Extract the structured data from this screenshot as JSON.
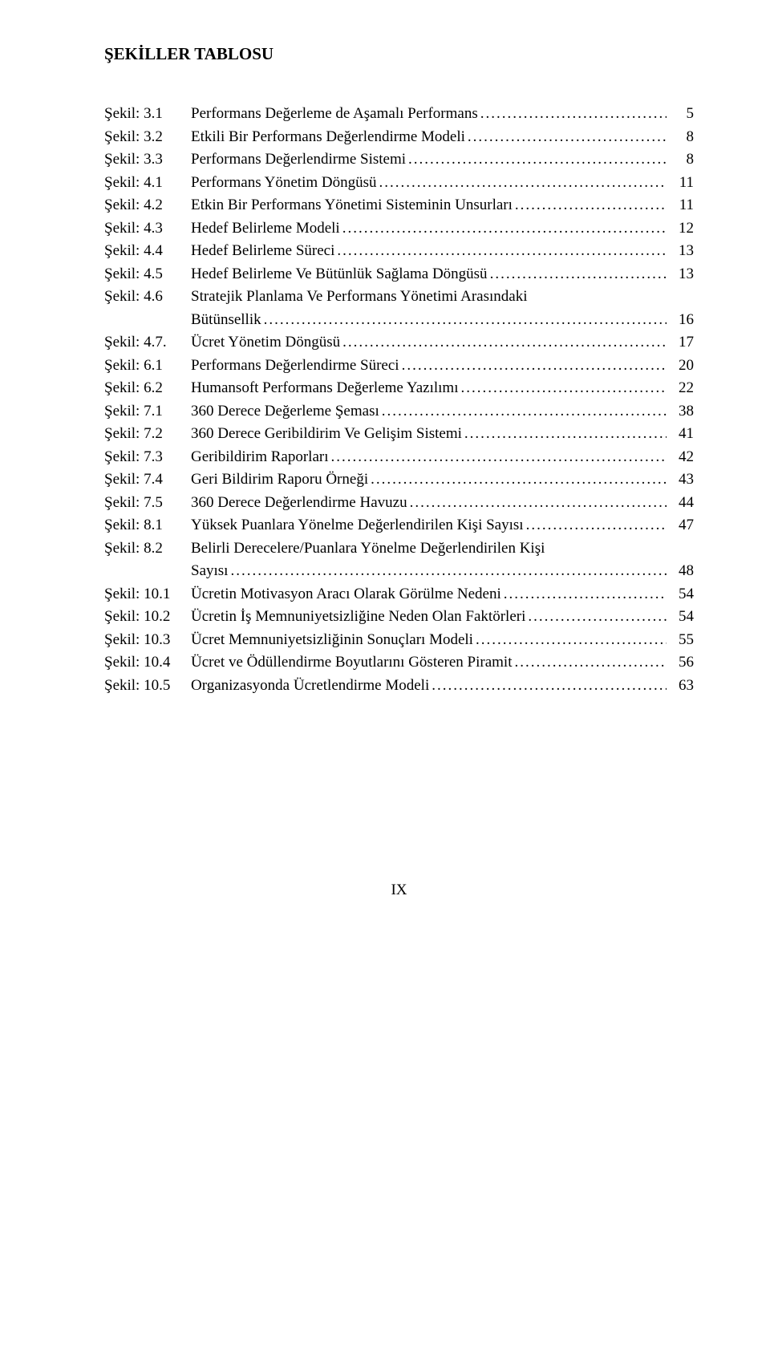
{
  "title": "ŞEKİLLER TABLOSU",
  "page_number": "IX",
  "leader_char": ".",
  "colors": {
    "background": "#ffffff",
    "text": "#000000"
  },
  "typography": {
    "font_family": "Times New Roman",
    "title_fontsize": 21,
    "body_fontsize": 19,
    "title_weight": "bold"
  },
  "entries": [
    {
      "label": "Şekil: 3.1",
      "desc": "Performans Değerleme de Aşamalı Performans",
      "page": "5"
    },
    {
      "label": "Şekil: 3.2",
      "desc": "Etkili Bir Performans Değerlendirme Modeli",
      "page": "8"
    },
    {
      "label": "Şekil: 3.3",
      "desc": "Performans Değerlendirme Sistemi",
      "page": "8"
    },
    {
      "label": "Şekil: 4.1",
      "desc": "Performans Yönetim Döngüsü",
      "page": "11"
    },
    {
      "label": "Şekil: 4.2",
      "desc": "Etkin Bir Performans Yönetimi Sisteminin Unsurları",
      "page": "11"
    },
    {
      "label": "Şekil: 4.3",
      "desc": "Hedef Belirleme Modeli",
      "page": "12"
    },
    {
      "label": "Şekil: 4.4",
      "desc": "Hedef Belirleme Süreci",
      "page": "13"
    },
    {
      "label": "Şekil: 4.5",
      "desc": "Hedef Belirleme Ve Bütünlük Sağlama Döngüsü",
      "page": "13"
    },
    {
      "label": "Şekil: 4.6",
      "desc": "Stratejik Planlama Ve Performans Yönetimi Arasındaki",
      "page": "",
      "cont": {
        "desc": "Bütünsellik",
        "page": "16"
      }
    },
    {
      "label": "Şekil: 4.7.",
      "desc": "Ücret Yönetim Döngüsü",
      "page": "17"
    },
    {
      "label": "Şekil: 6.1",
      "desc": "Performans Değerlendirme Süreci",
      "page": "20"
    },
    {
      "label": "Şekil: 6.2",
      "desc": "Humansoft Performans Değerleme Yazılımı",
      "page": "22"
    },
    {
      "label": "Şekil: 7.1",
      "desc": "360 Derece Değerleme Şeması",
      "page": "38"
    },
    {
      "label": "Şekil: 7.2",
      "desc": "360 Derece Geribildirim Ve Gelişim Sistemi",
      "page": "41"
    },
    {
      "label": "Şekil: 7.3",
      "desc": "Geribildirim Raporları",
      "page": "42"
    },
    {
      "label": "Şekil: 7.4",
      "desc": "Geri Bildirim Raporu Örneği",
      "page": "43"
    },
    {
      "label": "Şekil: 7.5",
      "desc": "360 Derece Değerlendirme Havuzu",
      "page": "44"
    },
    {
      "label": "Şekil: 8.1",
      "desc": "Yüksek Puanlara Yönelme  Değerlendirilen Kişi Sayısı",
      "page": "47"
    },
    {
      "label": "Şekil: 8.2",
      "desc": "Belirli Derecelere/Puanlara Yönelme  Değerlendirilen Kişi",
      "page": "",
      "cont": {
        "desc": "Sayısı",
        "page": "48"
      }
    },
    {
      "label": "Şekil: 10.1",
      "desc": "Ücretin Motivasyon Aracı Olarak Görülme Nedeni",
      "page": "54"
    },
    {
      "label": "Şekil: 10.2",
      "desc": "Ücretin İş Memnuniyetsizliğine Neden Olan Faktörleri",
      "page": "54"
    },
    {
      "label": "Şekil: 10.3",
      "desc": "Ücret Memnuniyetsizliğinin Sonuçları Modeli",
      "page": "55"
    },
    {
      "label": "Şekil: 10.4",
      "desc": "Ücret ve Ödüllendirme Boyutlarını Gösteren Piramit",
      "page": "56"
    },
    {
      "label": "Şekil: 10.5",
      "desc": "Organizasyonda Ücretlendirme Modeli",
      "page": "63"
    }
  ]
}
